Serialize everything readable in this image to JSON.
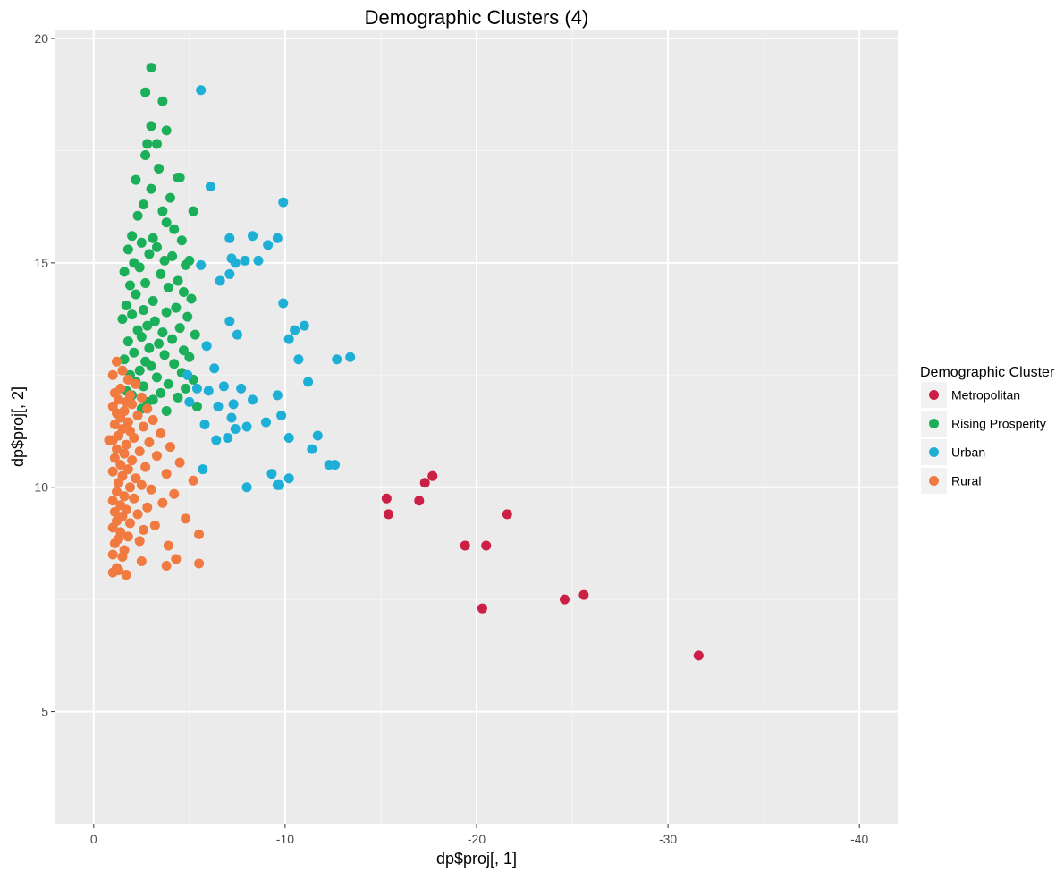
{
  "chart_data": {
    "type": "scatter",
    "title": "Demographic Clusters (4)",
    "xlabel": "dp$proj[, 1]",
    "ylabel": "dp$proj[, 2]",
    "xlim": [
      2,
      -42
    ],
    "ylim": [
      2.5,
      20.2
    ],
    "x_reversed": true,
    "x_major_ticks": [
      0,
      -10,
      -20,
      -30,
      -40
    ],
    "x_tick_labels": [
      "0",
      "-10",
      "-20",
      "-30",
      "-40"
    ],
    "x_minor_ticks": [
      -5,
      -15,
      -25,
      -35
    ],
    "y_major_ticks": [
      5,
      10,
      15,
      20
    ],
    "y_tick_labels": [
      "5",
      "10",
      "15",
      "20"
    ],
    "y_minor_ticks": [
      7.5,
      12.5,
      17.5
    ],
    "grid": true,
    "panel_background": "#EBEBEB",
    "legend": {
      "title": "Demographic Cluster",
      "position": "right"
    },
    "series": [
      {
        "name": "Metropolitan",
        "color": "#CC1F45",
        "x": [
          -15.3,
          -15.4,
          -17.0,
          -17.3,
          -17.7,
          -19.4,
          -20.5,
          -21.6,
          -20.3,
          -24.6,
          -25.6,
          -31.6
        ],
        "y": [
          9.75,
          9.4,
          9.7,
          10.1,
          10.25,
          8.7,
          8.7,
          9.4,
          7.3,
          7.5,
          7.6,
          6.25
        ]
      },
      {
        "name": "Rising Prosperity",
        "color": "#1BAF59",
        "x": [
          -3.0,
          -2.7,
          -3.6,
          -3.0,
          -3.8,
          -2.8,
          -3.3,
          -2.7,
          -3.4,
          -4.5,
          -4.4,
          -2.2,
          -3.0,
          -4.0,
          -5.2,
          -2.6,
          -3.6,
          -2.3,
          -3.8,
          -4.2,
          -2.0,
          -3.1,
          -4.6,
          -2.5,
          -3.3,
          -1.8,
          -2.9,
          -4.1,
          -3.7,
          -2.1,
          -5.0,
          -4.8,
          -2.4,
          -1.6,
          -3.5,
          -4.4,
          -2.7,
          -1.9,
          -3.9,
          -4.7,
          -2.2,
          -5.1,
          -3.1,
          -1.7,
          -4.3,
          -2.6,
          -3.8,
          -2.0,
          -4.9,
          -1.5,
          -3.2,
          -2.8,
          -4.5,
          -2.3,
          -3.6,
          -5.3,
          -2.5,
          -4.1,
          -1.8,
          -3.4,
          -2.9,
          -4.7,
          -2.1,
          -3.7,
          -5.0,
          -1.6,
          -2.7,
          -4.2,
          -3.0,
          -2.4,
          -4.6,
          -1.9,
          -3.3,
          -5.2,
          -2.2,
          -3.9,
          -2.6,
          -4.8,
          -1.7,
          -3.5,
          -2.0,
          -4.4,
          -3.1,
          -2.8,
          -5.4,
          -2.5,
          -3.8
        ],
        "y": [
          19.35,
          18.8,
          18.6,
          18.05,
          17.95,
          17.65,
          17.65,
          17.4,
          17.1,
          16.9,
          16.9,
          16.85,
          16.65,
          16.45,
          16.15,
          16.3,
          16.15,
          16.05,
          15.9,
          15.75,
          15.6,
          15.55,
          15.5,
          15.45,
          15.35,
          15.3,
          15.2,
          15.15,
          15.05,
          15.0,
          15.05,
          14.95,
          14.9,
          14.8,
          14.75,
          14.6,
          14.55,
          14.5,
          14.45,
          14.35,
          14.3,
          14.2,
          14.15,
          14.05,
          14.0,
          13.95,
          13.9,
          13.85,
          13.8,
          13.75,
          13.7,
          13.6,
          13.55,
          13.5,
          13.45,
          13.4,
          13.35,
          13.3,
          13.25,
          13.2,
          13.1,
          13.05,
          13.0,
          12.95,
          12.9,
          12.85,
          12.8,
          12.75,
          12.7,
          12.6,
          12.55,
          12.5,
          12.45,
          12.4,
          12.35,
          12.3,
          12.25,
          12.2,
          12.15,
          12.1,
          12.05,
          12.0,
          11.95,
          11.9,
          11.8,
          11.75,
          11.7
        ]
      },
      {
        "name": "Urban",
        "color": "#1EAFD6",
        "x": [
          -5.6,
          -6.1,
          -9.9,
          -7.1,
          -8.3,
          -9.6,
          -9.1,
          -8.6,
          -7.9,
          -7.2,
          -7.4,
          -5.6,
          -7.1,
          -6.6,
          -9.9,
          -7.1,
          -11.0,
          -10.5,
          -7.5,
          -10.2,
          -10.7,
          -13.4,
          -12.7,
          -5.9,
          -11.2,
          -4.9,
          -6.3,
          -5.4,
          -6.8,
          -6.0,
          -7.7,
          -9.6,
          -8.3,
          -5.0,
          -7.3,
          -6.5,
          -9.8,
          -9.0,
          -5.8,
          -7.2,
          -8.0,
          -10.2,
          -11.7,
          -11.4,
          -12.3,
          -12.6,
          -10.2,
          -9.7,
          -5.7,
          -8.0,
          -9.6,
          -9.3,
          -6.4,
          -7.0,
          -7.4
        ],
        "y": [
          18.85,
          16.7,
          16.35,
          15.55,
          15.6,
          15.55,
          15.4,
          15.05,
          15.05,
          15.1,
          15.0,
          14.95,
          14.75,
          14.6,
          14.1,
          13.7,
          13.6,
          13.5,
          13.4,
          13.3,
          12.85,
          12.9,
          12.85,
          13.15,
          12.35,
          12.5,
          12.65,
          12.2,
          12.25,
          12.15,
          12.2,
          12.05,
          11.95,
          11.9,
          11.85,
          11.8,
          11.6,
          11.45,
          11.4,
          11.55,
          11.35,
          11.1,
          11.15,
          10.85,
          10.5,
          10.5,
          10.2,
          10.05,
          10.4,
          10.0,
          10.05,
          10.3,
          11.05,
          11.1,
          11.3
        ],
        "comment_na": ""
      },
      {
        "name": "Rural",
        "color": "#F07A40",
        "x": [
          -1.2,
          -1.5,
          -1.0,
          -1.8,
          -2.2,
          -1.4,
          -1.1,
          -1.9,
          -2.5,
          -1.3,
          -1.7,
          -2.0,
          -1.0,
          -2.8,
          -1.6,
          -1.2,
          -2.3,
          -1.4,
          -3.1,
          -1.8,
          -1.1,
          -2.6,
          -1.5,
          -1.9,
          -3.5,
          -1.3,
          -2.1,
          -1.0,
          -2.9,
          -1.7,
          -4.0,
          -1.2,
          -2.4,
          -1.6,
          -3.3,
          -1.1,
          -2.0,
          -4.5,
          -1.4,
          -2.7,
          -1.8,
          -1.0,
          -3.8,
          -1.5,
          -2.2,
          -5.2,
          -1.3,
          -2.5,
          -1.9,
          -3.0,
          -1.2,
          -4.2,
          -1.6,
          -2.1,
          -1.0,
          -3.6,
          -1.4,
          -2.8,
          -1.7,
          -0.8,
          -1.1,
          -2.3,
          -1.5,
          -4.8,
          -1.2,
          -1.9,
          -3.2,
          -1.0,
          -2.6,
          -1.4,
          -5.5,
          -1.8,
          -1.3,
          -2.4,
          -1.1,
          -3.9,
          -1.6,
          -1.0,
          -1.5,
          -4.3,
          -2.5,
          -5.5,
          -3.8,
          -1.2,
          -1.3,
          -1.0,
          -1.7
        ],
        "y": [
          12.8,
          12.6,
          12.5,
          12.4,
          12.3,
          12.2,
          12.1,
          12.05,
          12.0,
          11.95,
          11.9,
          11.85,
          11.8,
          11.75,
          11.7,
          11.65,
          11.6,
          11.55,
          11.5,
          11.45,
          11.4,
          11.35,
          11.3,
          11.25,
          11.2,
          11.15,
          11.1,
          11.05,
          11.0,
          10.95,
          10.9,
          10.85,
          10.8,
          10.75,
          10.7,
          10.65,
          10.6,
          10.55,
          10.5,
          10.45,
          10.4,
          10.35,
          10.3,
          10.25,
          10.2,
          10.15,
          10.1,
          10.05,
          10.0,
          9.95,
          9.9,
          9.85,
          9.8,
          9.75,
          9.7,
          9.65,
          9.6,
          9.55,
          9.5,
          11.05,
          9.45,
          9.4,
          9.35,
          9.3,
          9.25,
          9.2,
          9.15,
          9.1,
          9.05,
          9.0,
          8.95,
          8.9,
          8.85,
          8.8,
          8.75,
          8.7,
          8.6,
          8.5,
          8.45,
          8.4,
          8.35,
          8.3,
          8.25,
          8.2,
          8.15,
          8.1,
          8.05
        ]
      }
    ]
  }
}
